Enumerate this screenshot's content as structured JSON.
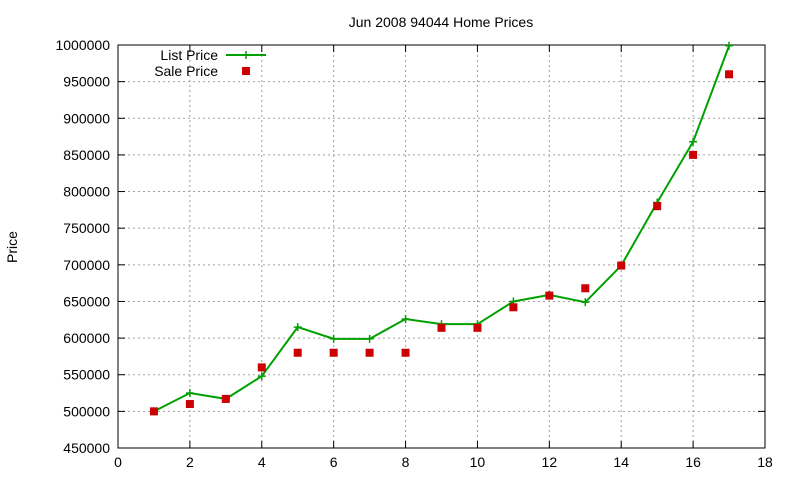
{
  "chart_data": {
    "type": "line",
    "title": "Jun 2008 94044 Home Prices",
    "xlabel": "",
    "ylabel": "Price",
    "xlim": [
      0,
      18
    ],
    "ylim": [
      450000,
      1000000
    ],
    "x_ticks": [
      0,
      2,
      4,
      6,
      8,
      10,
      12,
      14,
      16,
      18
    ],
    "y_ticks": [
      450000,
      500000,
      550000,
      600000,
      650000,
      700000,
      750000,
      800000,
      850000,
      900000,
      950000,
      1000000
    ],
    "grid": true,
    "legend_position": "top-left",
    "series": [
      {
        "name": "List Price",
        "style": "line-with-plus",
        "color": "#00a000",
        "x": [
          1,
          2,
          3,
          4,
          5,
          6,
          7,
          8,
          9,
          10,
          11,
          12,
          13,
          14,
          15,
          16,
          17
        ],
        "y": [
          500000,
          525000,
          517000,
          548000,
          615000,
          599000,
          599000,
          626000,
          619000,
          619000,
          650000,
          659000,
          649000,
          699000,
          785000,
          868000,
          999000
        ]
      },
      {
        "name": "Sale Price",
        "style": "square-points",
        "color": "#cc0000",
        "x": [
          1,
          2,
          3,
          4,
          5,
          6,
          7,
          8,
          9,
          10,
          11,
          12,
          13,
          14,
          15,
          16,
          17
        ],
        "y": [
          500000,
          510000,
          517000,
          560000,
          580000,
          580000,
          580000,
          580000,
          614000,
          614000,
          642000,
          658000,
          668000,
          699000,
          780000,
          850000,
          960000
        ]
      }
    ]
  }
}
